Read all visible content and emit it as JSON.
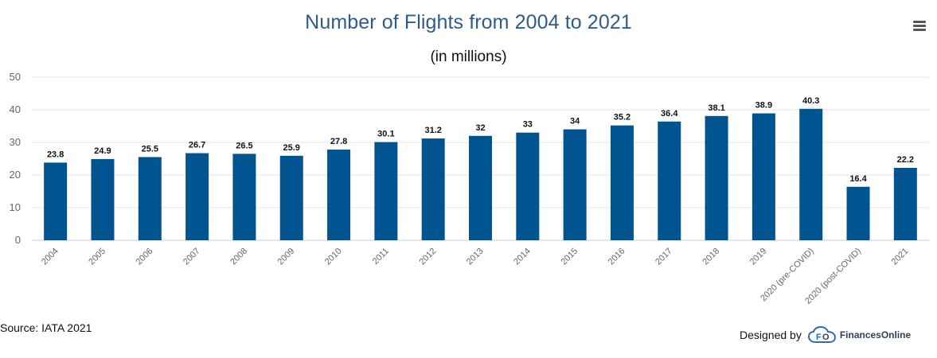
{
  "chart_data": {
    "type": "bar",
    "title": "Number of Flights from 2004 to 2021",
    "subtitle": "(in millions)",
    "categories": [
      "2004",
      "2005",
      "2006",
      "2007",
      "2008",
      "2009",
      "2010",
      "2011",
      "2012",
      "2013",
      "2014",
      "2015",
      "2016",
      "2017",
      "2018",
      "2019",
      "2020 (pre-COVID)",
      "2020 (post-COVID)",
      "2021"
    ],
    "values": [
      23.8,
      24.9,
      25.5,
      26.7,
      26.5,
      25.9,
      27.8,
      30.1,
      31.2,
      32,
      33,
      34,
      35.2,
      36.4,
      38.1,
      38.9,
      40.3,
      16.4,
      22.2
    ],
    "value_labels": [
      "23.8",
      "24.9",
      "25.5",
      "26.7",
      "26.5",
      "25.9",
      "27.8",
      "30.1",
      "31.2",
      "32",
      "33",
      "34",
      "35.2",
      "36.4",
      "38.1",
      "38.9",
      "40.3",
      "16.4",
      "22.2"
    ],
    "ylim": [
      0,
      50
    ],
    "yticks": [
      "0",
      "10",
      "20",
      "30",
      "40",
      "50"
    ],
    "grid": true,
    "bar_color": "#00548f"
  },
  "menu": {
    "icon": "hamburger-menu-icon"
  },
  "footer": {
    "source": "Source: IATA 2021",
    "designed_by": "Designed by",
    "brand": "FinancesOnline",
    "brand_icon": "financesonline-logo-icon"
  }
}
